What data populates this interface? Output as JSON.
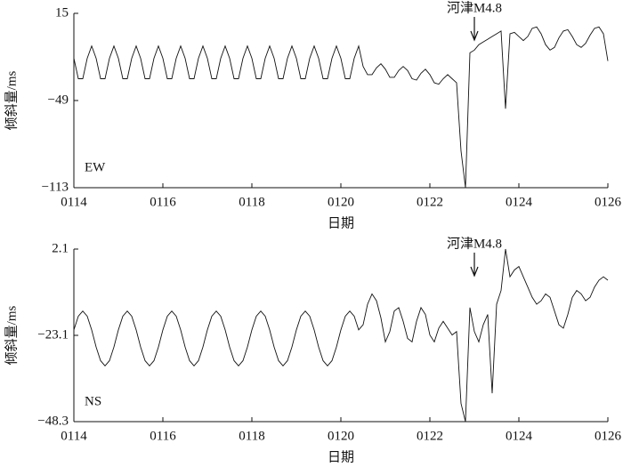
{
  "chart_data": [
    {
      "type": "line",
      "panel_label": "EW",
      "ylabel": "倾斜量/ms",
      "xlabel": "日期",
      "annotation": {
        "text": "河津M4.8",
        "x": 23
      },
      "xlim": [
        14,
        26
      ],
      "xticks": [
        {
          "value": 14,
          "label": "0114"
        },
        {
          "value": 16,
          "label": "0116"
        },
        {
          "value": 18,
          "label": "0118"
        },
        {
          "value": 20,
          "label": "0120"
        },
        {
          "value": 22,
          "label": "0122"
        },
        {
          "value": 24,
          "label": "0124"
        },
        {
          "value": 26,
          "label": "0126"
        }
      ],
      "ylim": [
        -113,
        15
      ],
      "yticks": [
        15,
        {
          "value": -49,
          "label": "−49"
        },
        {
          "value": -113,
          "label": "−113"
        }
      ],
      "color": "#111111",
      "x": [
        14,
        14.1,
        14.2,
        14.3,
        14.4,
        14.5,
        14.6,
        14.7,
        14.8,
        14.9,
        15,
        15.1,
        15.2,
        15.3,
        15.4,
        15.5,
        15.6,
        15.7,
        15.8,
        15.9,
        16,
        16.1,
        16.2,
        16.3,
        16.4,
        16.5,
        16.6,
        16.7,
        16.8,
        16.9,
        17,
        17.1,
        17.2,
        17.3,
        17.4,
        17.5,
        17.6,
        17.7,
        17.8,
        17.9,
        18,
        18.1,
        18.2,
        18.3,
        18.4,
        18.5,
        18.6,
        18.7,
        18.8,
        18.9,
        19,
        19.1,
        19.2,
        19.3,
        19.4,
        19.5,
        19.6,
        19.7,
        19.8,
        19.9,
        20,
        20.1,
        20.2,
        20.3,
        20.4,
        20.5,
        20.6,
        20.7,
        20.8,
        20.9,
        21,
        21.1,
        21.2,
        21.3,
        21.4,
        21.5,
        21.6,
        21.7,
        21.8,
        21.9,
        22,
        22.1,
        22.2,
        22.3,
        22.4,
        22.5,
        22.6,
        22.7,
        22.8,
        22.9,
        23,
        23.1,
        23.2,
        23.3,
        23.4,
        23.5,
        23.6,
        23.7,
        23.8,
        23.9,
        24,
        24.1,
        24.2,
        24.3,
        24.4,
        24.5,
        24.6,
        24.7,
        24.8,
        24.9,
        25,
        25.1,
        25.2,
        25.3,
        25.4,
        25.5,
        25.6,
        25.7,
        25.8,
        25.9,
        26
      ],
      "values": [
        -18,
        -33,
        -33,
        -18,
        -9,
        -18,
        -33,
        -33,
        -18,
        -9,
        -18,
        -33,
        -33,
        -18,
        -9,
        -18,
        -33,
        -33,
        -18,
        -9,
        -18,
        -33,
        -33,
        -18,
        -9,
        -18,
        -33,
        -33,
        -18,
        -9,
        -18,
        -33,
        -33,
        -18,
        -9,
        -18,
        -33,
        -33,
        -18,
        -9,
        -18,
        -33,
        -33,
        -18,
        -9,
        -18,
        -33,
        -33,
        -18,
        -9,
        -18,
        -33,
        -33,
        -18,
        -9,
        -18,
        -33,
        -33,
        -18,
        -9,
        -18,
        -33,
        -33,
        -18,
        -9,
        -24,
        -30,
        -30,
        -25,
        -22,
        -26,
        -32,
        -32,
        -27,
        -24,
        -27,
        -33,
        -34,
        -29,
        -26,
        -30,
        -36,
        -37,
        -33,
        -30,
        -33,
        -36,
        -86,
        -113,
        -14,
        -12,
        -8,
        -6,
        -4,
        -2,
        0,
        2,
        -55,
        0,
        1,
        -2,
        -5,
        -2,
        4,
        5,
        0,
        -8,
        -12,
        -10,
        -3,
        2,
        3,
        -2,
        -8,
        -10,
        -7,
        -1,
        4,
        5,
        0,
        -20
      ]
    },
    {
      "type": "line",
      "panel_label": "NS",
      "ylabel": "倾斜量/ms",
      "xlabel": "日期",
      "annotation": {
        "text": "河津M4.8",
        "x": 23
      },
      "xlim": [
        14,
        26
      ],
      "xticks": [
        {
          "value": 14,
          "label": "0114"
        },
        {
          "value": 16,
          "label": "0116"
        },
        {
          "value": 18,
          "label": "0118"
        },
        {
          "value": 20,
          "label": "0120"
        },
        {
          "value": 22,
          "label": "0122"
        },
        {
          "value": 24,
          "label": "0124"
        },
        {
          "value": 26,
          "label": "0126"
        }
      ],
      "ylim": [
        -48.3,
        2.1
      ],
      "yticks": [
        2.1,
        {
          "value": -23.1,
          "label": "−23.1"
        },
        {
          "value": -48.3,
          "label": "−48.3"
        }
      ],
      "color": "#111111",
      "x": [
        14,
        14.1,
        14.2,
        14.3,
        14.4,
        14.5,
        14.6,
        14.7,
        14.8,
        14.9,
        15,
        15.1,
        15.2,
        15.3,
        15.4,
        15.5,
        15.6,
        15.7,
        15.8,
        15.9,
        16,
        16.1,
        16.2,
        16.3,
        16.4,
        16.5,
        16.6,
        16.7,
        16.8,
        16.9,
        17,
        17.1,
        17.2,
        17.3,
        17.4,
        17.5,
        17.6,
        17.7,
        17.8,
        17.9,
        18,
        18.1,
        18.2,
        18.3,
        18.4,
        18.5,
        18.6,
        18.7,
        18.8,
        18.9,
        19,
        19.1,
        19.2,
        19.3,
        19.4,
        19.5,
        19.6,
        19.7,
        19.8,
        19.9,
        20,
        20.1,
        20.2,
        20.3,
        20.4,
        20.5,
        20.6,
        20.7,
        20.8,
        20.9,
        21,
        21.1,
        21.2,
        21.3,
        21.4,
        21.5,
        21.6,
        21.7,
        21.8,
        21.9,
        22,
        22.1,
        22.2,
        22.3,
        22.4,
        22.5,
        22.6,
        22.7,
        22.8,
        22.9,
        23,
        23.1,
        23.2,
        23.3,
        23.4,
        23.5,
        23.6,
        23.7,
        23.8,
        23.9,
        24,
        24.1,
        24.2,
        24.3,
        24.4,
        24.5,
        24.6,
        24.7,
        24.8,
        24.9,
        25,
        25.1,
        25.2,
        25.3,
        25.4,
        25.5,
        25.6,
        25.7,
        25.8,
        25.9,
        26
      ],
      "values": [
        -21.5,
        -17.5,
        -16,
        -17.5,
        -21.5,
        -26.5,
        -30.5,
        -32,
        -30.5,
        -26.5,
        -21.5,
        -17.5,
        -16,
        -17.5,
        -21.5,
        -26.5,
        -30.5,
        -32,
        -30.5,
        -26.5,
        -21.5,
        -17.5,
        -16,
        -17.5,
        -21.5,
        -26.5,
        -30.5,
        -32,
        -30.5,
        -26.5,
        -21.5,
        -17.5,
        -16,
        -17.5,
        -21.5,
        -26.5,
        -30.5,
        -32,
        -30.5,
        -26.5,
        -21.5,
        -17.5,
        -16,
        -17.5,
        -21.5,
        -26.5,
        -30.5,
        -32,
        -30.5,
        -26.5,
        -21.5,
        -17.5,
        -16,
        -17.5,
        -21.5,
        -26.5,
        -30.5,
        -32,
        -30.5,
        -26.5,
        -21.5,
        -17.5,
        -16,
        -17.5,
        -21.5,
        -20,
        -14,
        -11,
        -13,
        -18,
        -25,
        -22,
        -16,
        -15,
        -19,
        -24,
        -25,
        -19,
        -15,
        -17,
        -23,
        -25,
        -21,
        -19,
        -21,
        -23,
        -22,
        -43,
        -48.3,
        -15,
        -22,
        -25,
        -20,
        -17,
        -40,
        -14,
        -10,
        2.1,
        -6,
        -4,
        -3,
        -6,
        -9,
        -12,
        -14,
        -13,
        -11,
        -12,
        -16,
        -20,
        -21,
        -17,
        -12,
        -10,
        -11,
        -13,
        -12,
        -9,
        -7,
        -6,
        -7
      ]
    }
  ]
}
